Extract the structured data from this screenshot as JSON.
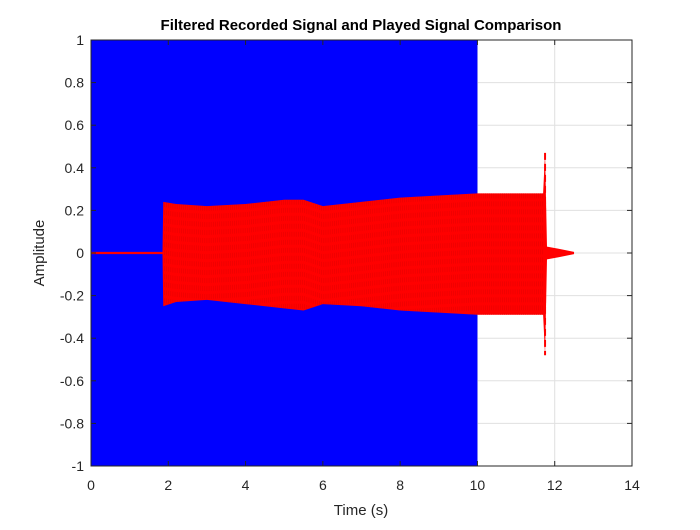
{
  "chart_data": {
    "type": "line",
    "title": "Filtered Recorded Signal and Played Signal Comparison",
    "xlabel": "Time (s)",
    "ylabel": "Amplitude",
    "xlim": [
      0,
      14
    ],
    "ylim": [
      -1,
      1
    ],
    "xticks": [
      0,
      2,
      4,
      6,
      8,
      10,
      12,
      14
    ],
    "yticks": [
      -1,
      -0.8,
      -0.6,
      -0.4,
      -0.2,
      0,
      0.2,
      0.4,
      0.6,
      0.8,
      1
    ],
    "xtick_labels": [
      "0",
      "2",
      "4",
      "6",
      "8",
      "10",
      "12",
      "14"
    ],
    "ytick_labels": [
      "-1",
      "-0.8",
      "-0.6",
      "-0.4",
      "-0.2",
      "0",
      "0.2",
      "0.4",
      "0.6",
      "0.8",
      "1"
    ],
    "grid": true,
    "series": [
      {
        "color": "#0000ff",
        "style": "solid",
        "description_kind": "dense-oscillation",
        "envelope": {
          "x": [
            0,
            10
          ],
          "upper": [
            1,
            1
          ],
          "lower": [
            -1,
            -1
          ]
        }
      },
      {
        "color": "#ff0000",
        "style": "dashed",
        "description_kind": "dense-oscillation",
        "envelope": {
          "x": [
            0,
            1.85,
            1.87,
            2.2,
            3,
            4,
            5,
            5.5,
            6,
            7,
            8,
            9,
            10,
            11,
            11.7,
            11.75,
            11.8,
            12.1,
            12.5
          ],
          "upper": [
            0.005,
            0.005,
            0.24,
            0.23,
            0.22,
            0.23,
            0.25,
            0.25,
            0.22,
            0.24,
            0.26,
            0.27,
            0.28,
            0.28,
            0.28,
            0.47,
            0.03,
            0.02,
            0.005
          ],
          "lower": [
            -0.005,
            -0.005,
            -0.25,
            -0.23,
            -0.22,
            -0.24,
            -0.26,
            -0.27,
            -0.24,
            -0.25,
            -0.27,
            -0.28,
            -0.29,
            -0.29,
            -0.29,
            -0.48,
            -0.03,
            -0.02,
            -0.005
          ]
        },
        "spike": {
          "x": 11.75,
          "y_max": 0.47,
          "y_min": -0.48
        }
      }
    ]
  }
}
